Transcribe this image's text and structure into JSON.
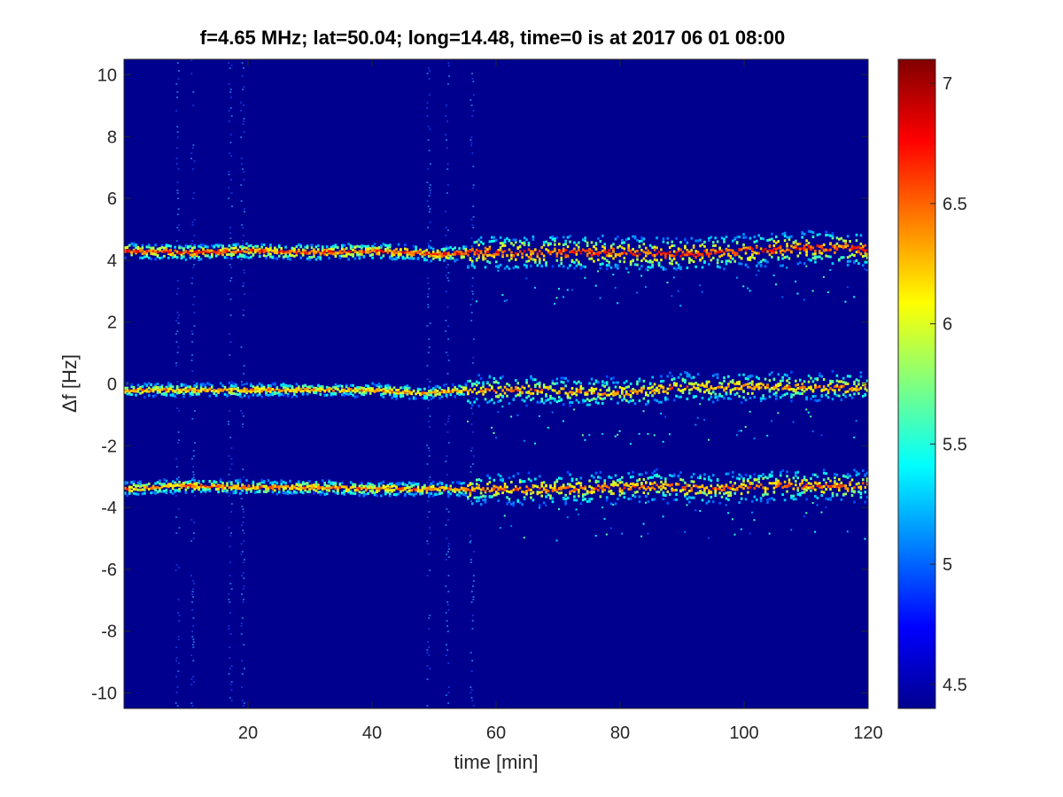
{
  "chart_data": {
    "type": "heatmap",
    "title": "f=4.65 MHz;  lat=50.04; long=14.48, time=0 is at 2017 06 01 08:00",
    "xlabel": "time [min]",
    "ylabel": "Δf [Hz]",
    "xlim": [
      0,
      120
    ],
    "ylim": [
      -10.5,
      10.5
    ],
    "x_ticks": [
      20,
      40,
      60,
      80,
      100,
      120
    ],
    "y_ticks": [
      10,
      8,
      6,
      4,
      2,
      0,
      -2,
      -4,
      -6,
      -8,
      -10
    ],
    "colormap": "jet",
    "background_color": "#00008f",
    "colorbar": {
      "clim": [
        4.4,
        7.1
      ],
      "ticks": [
        7,
        6.5,
        6,
        5.5,
        5,
        4.5
      ]
    },
    "traces": [
      {
        "description": "upper Doppler trace",
        "points": [
          [
            0,
            4.3
          ],
          [
            10,
            4.25
          ],
          [
            20,
            4.3
          ],
          [
            30,
            4.25
          ],
          [
            40,
            4.3
          ],
          [
            50,
            4.2
          ],
          [
            60,
            4.25
          ],
          [
            70,
            4.25
          ],
          [
            80,
            4.25
          ],
          [
            85,
            4.2
          ],
          [
            90,
            4.2
          ],
          [
            100,
            4.3
          ],
          [
            110,
            4.4
          ],
          [
            120,
            4.35
          ]
        ],
        "peak_level": 7.0
      },
      {
        "description": "middle Doppler trace",
        "points": [
          [
            0,
            -0.2
          ],
          [
            10,
            -0.2
          ],
          [
            20,
            -0.2
          ],
          [
            30,
            -0.2
          ],
          [
            40,
            -0.2
          ],
          [
            48,
            -0.3
          ],
          [
            55,
            -0.2
          ],
          [
            65,
            -0.2
          ],
          [
            80,
            -0.3
          ],
          [
            90,
            -0.1
          ],
          [
            100,
            -0.1
          ],
          [
            120,
            -0.1
          ]
        ],
        "peak_level": 6.7
      },
      {
        "description": "lower Doppler trace",
        "points": [
          [
            0,
            -3.4
          ],
          [
            10,
            -3.3
          ],
          [
            20,
            -3.35
          ],
          [
            30,
            -3.35
          ],
          [
            40,
            -3.4
          ],
          [
            55,
            -3.4
          ],
          [
            65,
            -3.4
          ],
          [
            75,
            -3.4
          ],
          [
            85,
            -3.3
          ],
          [
            95,
            -3.4
          ],
          [
            105,
            -3.3
          ],
          [
            120,
            -3.3
          ]
        ],
        "peak_level": 6.8
      }
    ],
    "vertical_streaks_min": [
      8.5,
      11,
      17,
      19,
      49,
      52,
      56
    ]
  }
}
